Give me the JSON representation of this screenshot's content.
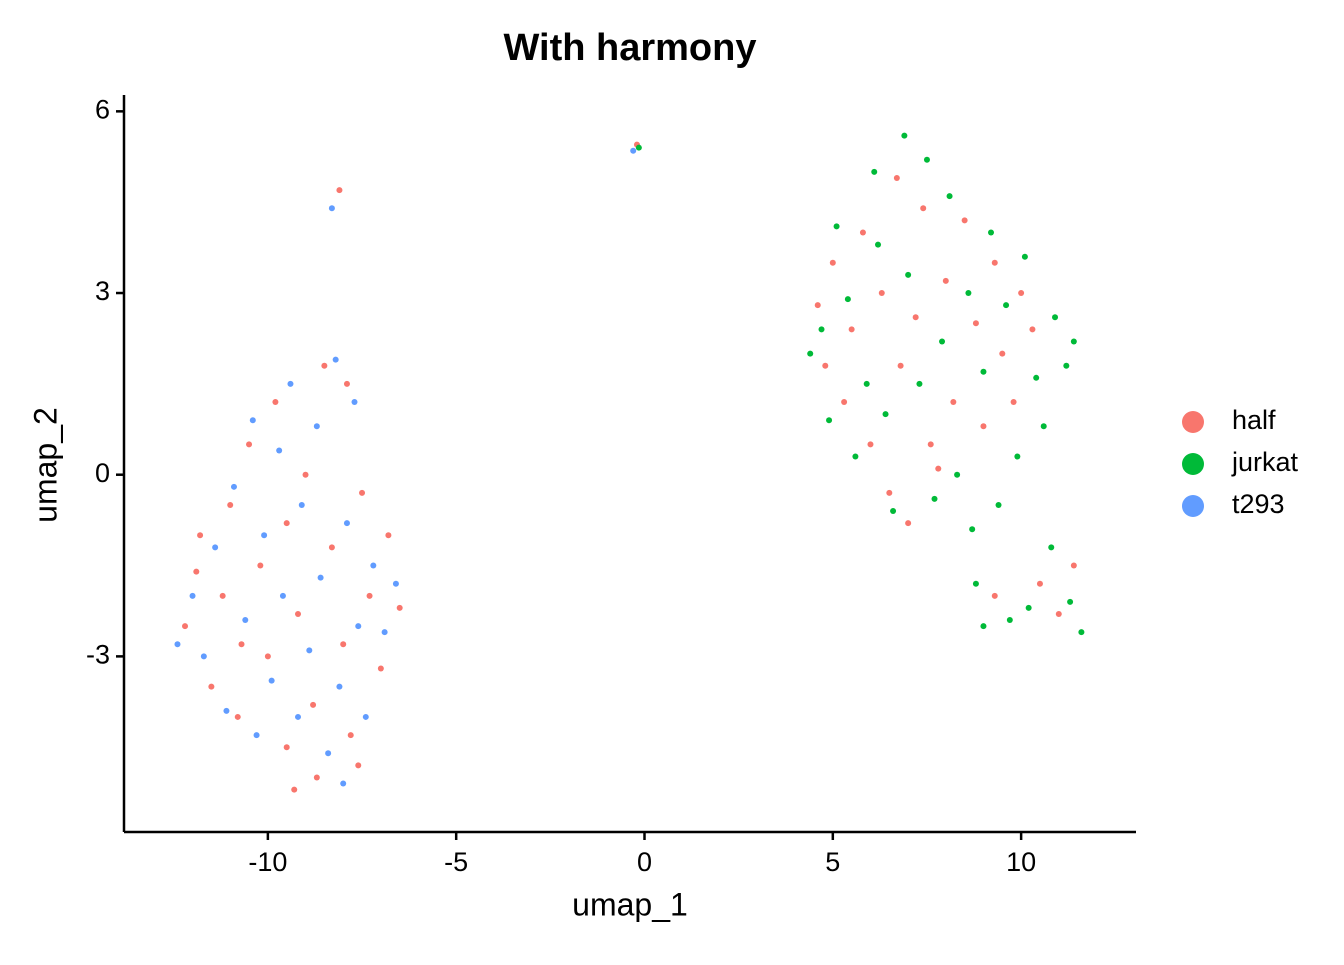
{
  "chart_data": {
    "type": "scatter",
    "title": "With harmony",
    "x_label": "umap_1",
    "y_label": "umap_2",
    "xlim": [
      -13.82,
      13.05
    ],
    "ylim": [
      -5.9,
      6.27
    ],
    "xticks": [
      -10,
      -5,
      0,
      5,
      10
    ],
    "yticks": [
      -3,
      0,
      3,
      6
    ],
    "grid": false,
    "legend": "right",
    "series": [
      {
        "name": "half",
        "color": "#F8766D",
        "x": [
          -12.2,
          -11.8,
          -11.5,
          -11.0,
          -11.2,
          -10.8,
          -10.5,
          -10.2,
          -10.0,
          -9.8,
          -9.5,
          -9.5,
          -9.2,
          -9.0,
          -8.8,
          -8.7,
          -8.5,
          -8.3,
          -8.0,
          -7.9,
          -7.8,
          -7.5,
          -7.3,
          -7.0,
          -6.8,
          -6.5,
          -7.6,
          -10.7,
          -11.9,
          -9.3,
          -8.1,
          4.6,
          4.8,
          5.0,
          5.3,
          5.5,
          5.8,
          6.0,
          6.3,
          6.5,
          6.7,
          6.8,
          7.0,
          7.2,
          7.4,
          7.6,
          7.8,
          8.0,
          8.2,
          8.5,
          8.8,
          9.0,
          9.3,
          9.5,
          9.8,
          10.0,
          10.3,
          9.3,
          10.5,
          11.0,
          11.4,
          -0.2
        ],
        "y": [
          -2.5,
          -1.0,
          -3.5,
          -0.5,
          -2.0,
          -4.0,
          0.5,
          -1.5,
          -3.0,
          1.2,
          -0.8,
          -4.5,
          -2.3,
          0.0,
          -3.8,
          -5.0,
          1.8,
          -1.2,
          -2.8,
          1.5,
          -4.3,
          -0.3,
          -2.0,
          -3.2,
          -1.0,
          -2.2,
          -4.8,
          -2.8,
          -1.6,
          -5.2,
          4.7,
          2.8,
          1.8,
          3.5,
          1.2,
          2.4,
          4.0,
          0.5,
          3.0,
          -0.3,
          4.9,
          1.8,
          -0.8,
          2.6,
          4.4,
          0.5,
          0.1,
          3.2,
          1.2,
          4.2,
          2.5,
          0.8,
          3.5,
          2.0,
          1.2,
          3.0,
          2.4,
          -2.0,
          -1.8,
          -2.3,
          -1.5,
          5.45
        ]
      },
      {
        "name": "jurkat",
        "color": "#00BA38",
        "x": [
          4.4,
          4.7,
          4.9,
          5.1,
          5.4,
          5.6,
          5.9,
          6.1,
          6.2,
          6.4,
          6.6,
          6.9,
          7.0,
          7.3,
          7.5,
          7.7,
          7.9,
          8.1,
          8.3,
          8.6,
          8.7,
          9.0,
          9.2,
          9.4,
          9.6,
          9.9,
          10.1,
          10.4,
          10.6,
          10.9,
          11.2,
          11.4,
          8.8,
          9.0,
          9.7,
          10.2,
          10.8,
          11.3,
          11.6,
          -0.15
        ],
        "y": [
          2.0,
          2.4,
          0.9,
          4.1,
          2.9,
          0.3,
          1.5,
          5.0,
          3.8,
          1.0,
          -0.6,
          5.6,
          3.3,
          1.5,
          5.2,
          -0.4,
          2.2,
          4.6,
          0.0,
          3.0,
          -0.9,
          1.7,
          4.0,
          -0.5,
          2.8,
          0.3,
          3.6,
          1.6,
          0.8,
          2.6,
          1.8,
          2.2,
          -1.8,
          -2.5,
          -2.4,
          -2.2,
          -1.2,
          -2.1,
          -2.6,
          5.4
        ]
      },
      {
        "name": "t293",
        "color": "#619CFF",
        "x": [
          -12.4,
          -12.0,
          -11.7,
          -11.4,
          -11.1,
          -10.9,
          -10.6,
          -10.4,
          -10.3,
          -10.1,
          -9.9,
          -9.7,
          -9.6,
          -9.4,
          -9.2,
          -9.1,
          -8.9,
          -8.7,
          -8.6,
          -8.4,
          -8.2,
          -8.1,
          -7.9,
          -7.7,
          -7.6,
          -7.4,
          -7.2,
          -6.9,
          -6.6,
          -8.0,
          -8.3,
          -0.3
        ],
        "y": [
          -2.8,
          -2.0,
          -3.0,
          -1.2,
          -3.9,
          -0.2,
          -2.4,
          0.9,
          -4.3,
          -1.0,
          -3.4,
          0.4,
          -2.0,
          1.5,
          -4.0,
          -0.5,
          -2.9,
          0.8,
          -1.7,
          -4.6,
          1.9,
          -3.5,
          -0.8,
          1.2,
          -2.5,
          -4.0,
          -1.5,
          -2.6,
          -1.8,
          -5.1,
          4.4,
          5.35
        ]
      }
    ]
  }
}
